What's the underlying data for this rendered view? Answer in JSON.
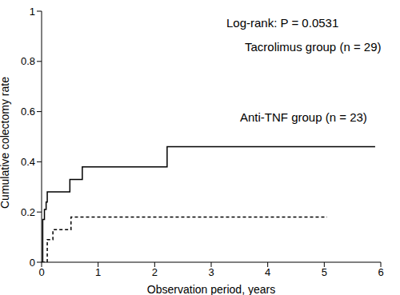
{
  "chart_data": {
    "type": "line",
    "x_label": "Observation period, years",
    "y_label": "Cumulative colectomy rate",
    "annotations": [
      "Log-rank: P = 0.0531"
    ],
    "xlim": [
      0,
      6
    ],
    "xticks": [
      0,
      1,
      2,
      3,
      4,
      5,
      6
    ],
    "ylim": [
      0,
      1
    ],
    "yticks": [
      0,
      0.2,
      0.4,
      0.6,
      0.8,
      1
    ],
    "grid": false,
    "series": [
      {
        "name": "Tacrolimus group (n = 29)",
        "color": "#000000",
        "line_style": "solid",
        "x": [
          0,
          0.02,
          0.05,
          0.08,
          0.1,
          0.5,
          0.72,
          2.22,
          5.9
        ],
        "values": [
          0,
          0.17,
          0.21,
          0.24,
          0.28,
          0.33,
          0.38,
          0.46,
          0.46
        ]
      },
      {
        "name": "Anti-TNF group (n = 23)",
        "color": "#000000",
        "line_style": "dashed",
        "x": [
          0,
          0.1,
          0.2,
          0.52,
          5.05
        ],
        "values": [
          0,
          0.09,
          0.13,
          0.18,
          0.18
        ]
      }
    ]
  }
}
